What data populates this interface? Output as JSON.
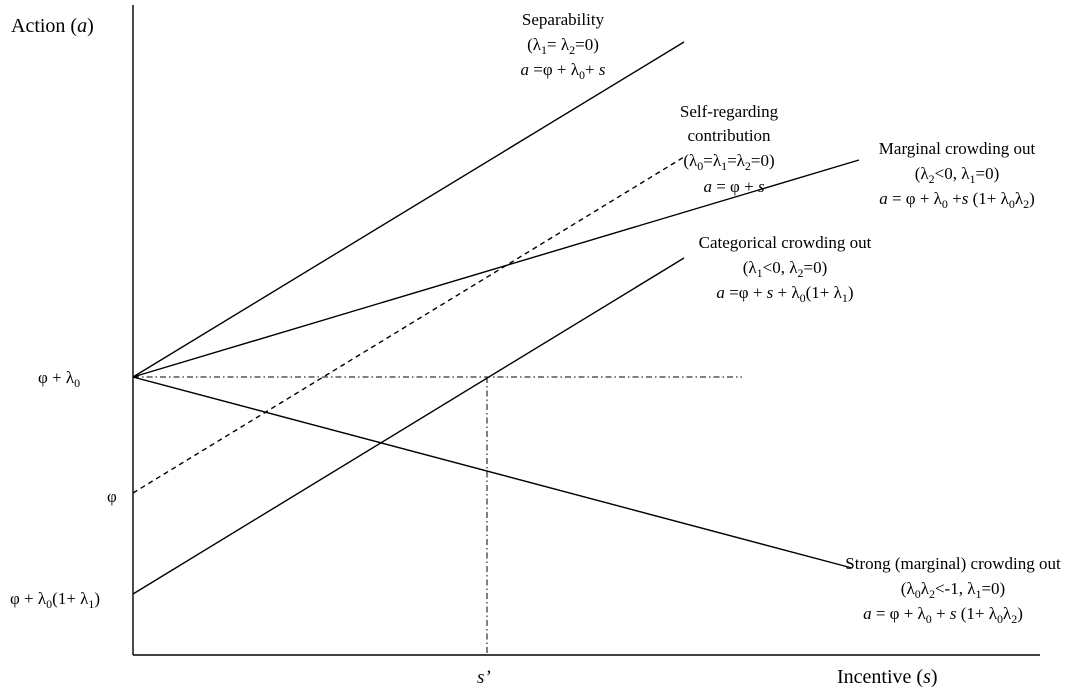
{
  "axes": {
    "y_title": {
      "main": "Action (",
      "var": "a",
      "close": ")"
    },
    "x_title": {
      "main": "Incentive (",
      "var": "s",
      "close": ")"
    },
    "x_tick": "s’",
    "y_ticks": {
      "phi_lambda0": {
        "base": "φ + λ",
        "sub": "0"
      },
      "phi": "φ",
      "phi_lambda0_lambda1": {
        "p1": "φ + λ",
        "s1": "0",
        "p2": "(1+ λ",
        "s2": "1",
        "p3": ")"
      }
    }
  },
  "lines": {
    "separability": {
      "title": "Separability",
      "cond": {
        "o": "(λ",
        "s1": "1",
        "m": "= λ",
        "s2": "2",
        "e": "=0)"
      },
      "eq": {
        "a": "a",
        "t1": " =φ + λ",
        "s1": "0",
        "t2": "+ ",
        "s": "s"
      }
    },
    "self_regarding": {
      "title1": "Self-regarding",
      "title2": "contribution",
      "cond": {
        "o": "(λ",
        "s0": "0",
        "m1": "=λ",
        "s1": "1",
        "m2": "=λ",
        "s2": "2",
        "e": "=0)"
      },
      "eq": {
        "a": "a",
        "t1": " = φ + ",
        "s": "s"
      }
    },
    "marginal": {
      "title": "Marginal crowding out",
      "cond": {
        "o": "(λ",
        "s2": "2",
        "m": "<0, λ",
        "s1": "1",
        "e": "=0)"
      },
      "eq": {
        "a": "a",
        "t1": " = φ + λ",
        "s0": "0",
        "t2": " +",
        "s": "s",
        "t3": " (1+ λ",
        "s0b": "0",
        "t4": "λ",
        "s2": "2",
        "t5": ")"
      }
    },
    "categorical": {
      "title": "Categorical crowding out",
      "cond": {
        "o": "(λ",
        "s1": "1",
        "m": "<0, λ",
        "s2": "2",
        "e": "=0)"
      },
      "eq": {
        "a": "a",
        "t1": " =φ + ",
        "s": "s",
        "t2": " + λ",
        "s0": "0",
        "t3": "(1+ λ",
        "s1": "1",
        "t4": ")"
      }
    },
    "strong": {
      "title": "Strong (marginal) crowding out",
      "cond": {
        "o": "(λ",
        "s0": "0",
        "m1": "λ",
        "s2": "2",
        "m2": "<-1, λ",
        "s1": "1",
        "e": "=0)"
      },
      "eq": {
        "a": "a",
        "t1": " = φ + λ",
        "s0": "0",
        "t2": " + ",
        "s": "s",
        "t3": " (1+ λ",
        "s0b": "0",
        "t4": "λ",
        "s2": "2",
        "t5": ")"
      }
    }
  }
}
